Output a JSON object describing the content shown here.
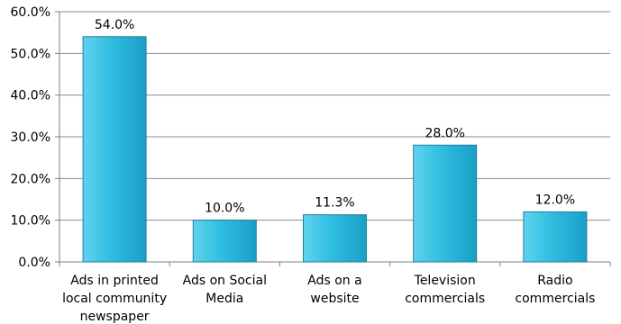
{
  "chart_data": {
    "type": "bar",
    "categories": [
      [
        "Ads in printed",
        "local community",
        "newspaper"
      ],
      [
        "Ads on Social",
        "Media"
      ],
      [
        "Ads on a",
        "website"
      ],
      [
        "Television",
        "commercials"
      ],
      [
        "Radio",
        "commercials"
      ]
    ],
    "values": [
      54.0,
      10.0,
      11.3,
      28.0,
      12.0
    ],
    "data_labels": [
      "54.0%",
      "10.0%",
      "11.3%",
      "28.0%",
      "12.0%"
    ],
    "yticks": [
      0,
      10,
      20,
      30,
      40,
      50,
      60
    ],
    "ytick_labels": [
      "0.0%",
      "10.0%",
      "20.0%",
      "30.0%",
      "40.0%",
      "50.0%",
      "60.0%"
    ],
    "ylim": [
      0,
      60
    ],
    "grid": "horizontal",
    "legend": "none",
    "title": "",
    "xlabel": "",
    "ylabel": "",
    "colors": {
      "bar_light": "#5fd3ee",
      "bar_mid": "#2fbde0",
      "bar_dark": "#1a9fc7",
      "bar_edge": "#1b7f9e",
      "grid": "#8c8c8c",
      "axis": "#7f7f7f"
    }
  }
}
